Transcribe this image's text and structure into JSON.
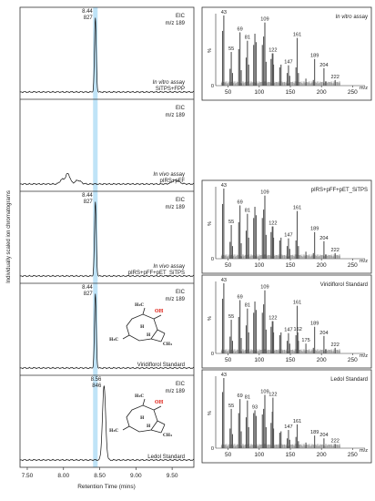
{
  "chart_data": [
    {
      "type": "line",
      "xlabel": "Retention Time (mins)",
      "ylabel": "Individually scaled ion chromatograms",
      "x_ticks": [
        "7.50",
        "8.00",
        "8.50",
        "9.00",
        "9.50"
      ],
      "xlim": [
        7.4,
        9.8
      ],
      "highlight_x": 8.44,
      "panels": [
        {
          "ion": "EIC",
          "mz": "m/z 189",
          "assay_italic": "In vitro",
          "assay": " assay",
          "sample": "SiTPS+FPP",
          "peaks": [
            {
              "x": 8.44,
              "h": 1.0,
              "w": 0.012
            }
          ],
          "peak_label": [
            "8.44",
            "827"
          ]
        },
        {
          "ion": "EIC",
          "mz": "m/z 189",
          "assay_italic": "In vivo",
          "assay": " assay",
          "sample": "pIRS+pFF",
          "peaks": [
            {
              "x": 8.06,
              "h": 0.14,
              "w": 0.03
            },
            {
              "x": 7.98,
              "h": 0.06,
              "w": 0.03
            },
            {
              "x": 8.2,
              "h": 0.05,
              "w": 0.04
            },
            {
              "x": 9.55,
              "h": 0.05,
              "w": 0.05
            }
          ],
          "peak_label": []
        },
        {
          "ion": "EIC",
          "mz": "m/z 189",
          "assay_italic": "In vivo",
          "assay": " assay",
          "sample": "pIRS+pFF+pET_SiTPS",
          "peaks": [
            {
              "x": 8.44,
              "h": 1.0,
              "w": 0.012
            }
          ],
          "peak_label": [
            "8.44",
            "827"
          ]
        },
        {
          "ion": "EIC",
          "mz": "m/z 189",
          "assay_italic": "",
          "assay": "",
          "sample": "Viridiflorol Standard",
          "peaks": [
            {
              "x": 8.44,
              "h": 1.0,
              "w": 0.012
            }
          ],
          "peak_label": [
            "8.44",
            "827"
          ]
        },
        {
          "ion": "EIC",
          "mz": "m/z 189",
          "assay_italic": "",
          "assay": "",
          "sample": "Ledol Standard",
          "peaks": [
            {
              "x": 8.56,
              "h": 1.0,
              "w": 0.022
            }
          ],
          "peak_label": [
            "8.56",
            "846"
          ]
        }
      ]
    },
    {
      "type": "bar",
      "xlabel": "m/z",
      "ylabel": "%",
      "xlim": [
        30,
        270
      ],
      "x_ticks": [
        "50",
        "100",
        "150",
        "200",
        "250"
      ],
      "y_ticks": [
        "0"
      ],
      "panels": [
        {
          "title": "In vitro",
          "title_rest": " assay",
          "title_italic": true,
          "labels": [
            {
              "mz": "43",
              "x": 43,
              "v": 100
            },
            {
              "mz": "55",
              "x": 55,
              "v": 48
            },
            {
              "mz": "69",
              "x": 69,
              "v": 76
            },
            {
              "mz": "81",
              "x": 81,
              "v": 64
            },
            {
              "mz": "109",
              "x": 109,
              "v": 90
            },
            {
              "mz": "122",
              "x": 122,
              "v": 46
            },
            {
              "mz": "147",
              "x": 147,
              "v": 29
            },
            {
              "mz": "161",
              "x": 161,
              "v": 68
            },
            {
              "mz": "189",
              "x": 189,
              "v": 38
            },
            {
              "mz": "204",
              "x": 204,
              "v": 25
            },
            {
              "mz": "222",
              "x": 222,
              "v": 8
            }
          ],
          "peaks": [
            [
              41,
              78
            ],
            [
              43,
              100
            ],
            [
              53,
              24
            ],
            [
              55,
              48
            ],
            [
              57,
              18
            ],
            [
              67,
              52
            ],
            [
              69,
              76
            ],
            [
              71,
              22
            ],
            [
              79,
              40
            ],
            [
              81,
              64
            ],
            [
              83,
              30
            ],
            [
              91,
              58
            ],
            [
              93,
              74
            ],
            [
              95,
              62
            ],
            [
              105,
              58
            ],
            [
              107,
              70
            ],
            [
              109,
              90
            ],
            [
              111,
              34
            ],
            [
              119,
              38
            ],
            [
              121,
              46
            ],
            [
              122,
              46
            ],
            [
              123,
              30
            ],
            [
              133,
              26
            ],
            [
              135,
              30
            ],
            [
              145,
              18
            ],
            [
              147,
              29
            ],
            [
              149,
              14
            ],
            [
              159,
              26
            ],
            [
              161,
              68
            ],
            [
              163,
              18
            ],
            [
              175,
              10
            ],
            [
              187,
              8
            ],
            [
              189,
              38
            ],
            [
              204,
              25
            ],
            [
              207,
              6
            ],
            [
              222,
              8
            ]
          ]
        },
        {
          "title": "pIRS+pFF+pET_SiTPS",
          "title_rest": "",
          "title_italic": false,
          "labels": [
            {
              "mz": "43",
              "x": 43,
              "v": 100
            },
            {
              "mz": "55",
              "x": 55,
              "v": 48
            },
            {
              "mz": "69",
              "x": 69,
              "v": 76
            },
            {
              "mz": "81",
              "x": 81,
              "v": 64
            },
            {
              "mz": "109",
              "x": 109,
              "v": 90
            },
            {
              "mz": "122",
              "x": 122,
              "v": 46
            },
            {
              "mz": "147",
              "x": 147,
              "v": 29
            },
            {
              "mz": "161",
              "x": 161,
              "v": 68
            },
            {
              "mz": "189",
              "x": 189,
              "v": 38
            },
            {
              "mz": "204",
              "x": 204,
              "v": 25
            },
            {
              "mz": "222",
              "x": 222,
              "v": 8
            }
          ],
          "peaks": [
            [
              41,
              78
            ],
            [
              43,
              100
            ],
            [
              53,
              24
            ],
            [
              55,
              48
            ],
            [
              57,
              18
            ],
            [
              67,
              52
            ],
            [
              69,
              76
            ],
            [
              71,
              22
            ],
            [
              79,
              40
            ],
            [
              81,
              64
            ],
            [
              83,
              30
            ],
            [
              91,
              58
            ],
            [
              93,
              74
            ],
            [
              95,
              62
            ],
            [
              105,
              58
            ],
            [
              107,
              70
            ],
            [
              109,
              90
            ],
            [
              111,
              34
            ],
            [
              119,
              38
            ],
            [
              121,
              46
            ],
            [
              122,
              46
            ],
            [
              123,
              30
            ],
            [
              133,
              26
            ],
            [
              135,
              30
            ],
            [
              145,
              18
            ],
            [
              147,
              29
            ],
            [
              149,
              14
            ],
            [
              159,
              26
            ],
            [
              161,
              68
            ],
            [
              163,
              18
            ],
            [
              175,
              10
            ],
            [
              187,
              8
            ],
            [
              189,
              38
            ],
            [
              204,
              25
            ],
            [
              207,
              6
            ],
            [
              222,
              8
            ]
          ]
        },
        {
          "title": "Viridiflorol Standard",
          "title_rest": "",
          "title_italic": false,
          "labels": [
            {
              "mz": "43",
              "x": 43,
              "v": 100
            },
            {
              "mz": "55",
              "x": 55,
              "v": 48
            },
            {
              "mz": "69",
              "x": 69,
              "v": 76
            },
            {
              "mz": "81",
              "x": 81,
              "v": 64
            },
            {
              "mz": "109",
              "x": 109,
              "v": 90
            },
            {
              "mz": "122",
              "x": 122,
              "v": 46
            },
            {
              "mz": "147",
              "x": 147,
              "v": 29
            },
            {
              "mz": "161",
              "x": 161,
              "v": 68
            },
            {
              "mz": "162",
              "x": 162,
              "v": 30
            },
            {
              "mz": "175",
              "x": 175,
              "v": 14
            },
            {
              "mz": "189",
              "x": 189,
              "v": 38
            },
            {
              "mz": "204",
              "x": 204,
              "v": 25
            },
            {
              "mz": "222",
              "x": 222,
              "v": 8
            }
          ],
          "peaks": [
            [
              41,
              78
            ],
            [
              43,
              100
            ],
            [
              53,
              24
            ],
            [
              55,
              48
            ],
            [
              57,
              18
            ],
            [
              67,
              52
            ],
            [
              69,
              76
            ],
            [
              71,
              22
            ],
            [
              79,
              40
            ],
            [
              81,
              64
            ],
            [
              83,
              30
            ],
            [
              91,
              58
            ],
            [
              93,
              74
            ],
            [
              95,
              62
            ],
            [
              105,
              58
            ],
            [
              107,
              70
            ],
            [
              109,
              90
            ],
            [
              111,
              34
            ],
            [
              119,
              38
            ],
            [
              121,
              46
            ],
            [
              122,
              46
            ],
            [
              123,
              30
            ],
            [
              133,
              26
            ],
            [
              135,
              30
            ],
            [
              145,
              18
            ],
            [
              147,
              29
            ],
            [
              149,
              14
            ],
            [
              159,
              26
            ],
            [
              161,
              68
            ],
            [
              162,
              30
            ],
            [
              163,
              18
            ],
            [
              175,
              14
            ],
            [
              187,
              8
            ],
            [
              189,
              38
            ],
            [
              204,
              25
            ],
            [
              207,
              6
            ],
            [
              222,
              8
            ]
          ]
        },
        {
          "title": "Ledol Standard",
          "title_rest": "",
          "title_italic": false,
          "labels": [
            {
              "mz": "43",
              "x": 43,
              "v": 100
            },
            {
              "mz": "55",
              "x": 55,
              "v": 56
            },
            {
              "mz": "69",
              "x": 69,
              "v": 70
            },
            {
              "mz": "81",
              "x": 81,
              "v": 68
            },
            {
              "mz": "93",
              "x": 93,
              "v": 54
            },
            {
              "mz": "109",
              "x": 109,
              "v": 76
            },
            {
              "mz": "122",
              "x": 122,
              "v": 72
            },
            {
              "mz": "147",
              "x": 147,
              "v": 26
            },
            {
              "mz": "161",
              "x": 161,
              "v": 34
            },
            {
              "mz": "189",
              "x": 189,
              "v": 18
            },
            {
              "mz": "204",
              "x": 204,
              "v": 14
            },
            {
              "mz": "222",
              "x": 222,
              "v": 6
            }
          ],
          "peaks": [
            [
              41,
              80
            ],
            [
              43,
              100
            ],
            [
              53,
              28
            ],
            [
              55,
              56
            ],
            [
              57,
              20
            ],
            [
              67,
              50
            ],
            [
              69,
              70
            ],
            [
              71,
              24
            ],
            [
              79,
              44
            ],
            [
              81,
              68
            ],
            [
              83,
              30
            ],
            [
              91,
              50
            ],
            [
              93,
              54
            ],
            [
              95,
              46
            ],
            [
              105,
              48
            ],
            [
              107,
              56
            ],
            [
              109,
              76
            ],
            [
              111,
              30
            ],
            [
              119,
              36
            ],
            [
              121,
              52
            ],
            [
              122,
              72
            ],
            [
              123,
              28
            ],
            [
              133,
              22
            ],
            [
              135,
              24
            ],
            [
              145,
              14
            ],
            [
              147,
              26
            ],
            [
              149,
              12
            ],
            [
              159,
              16
            ],
            [
              161,
              34
            ],
            [
              163,
              10
            ],
            [
              175,
              8
            ],
            [
              189,
              18
            ],
            [
              204,
              14
            ],
            [
              222,
              6
            ]
          ]
        }
      ]
    }
  ]
}
